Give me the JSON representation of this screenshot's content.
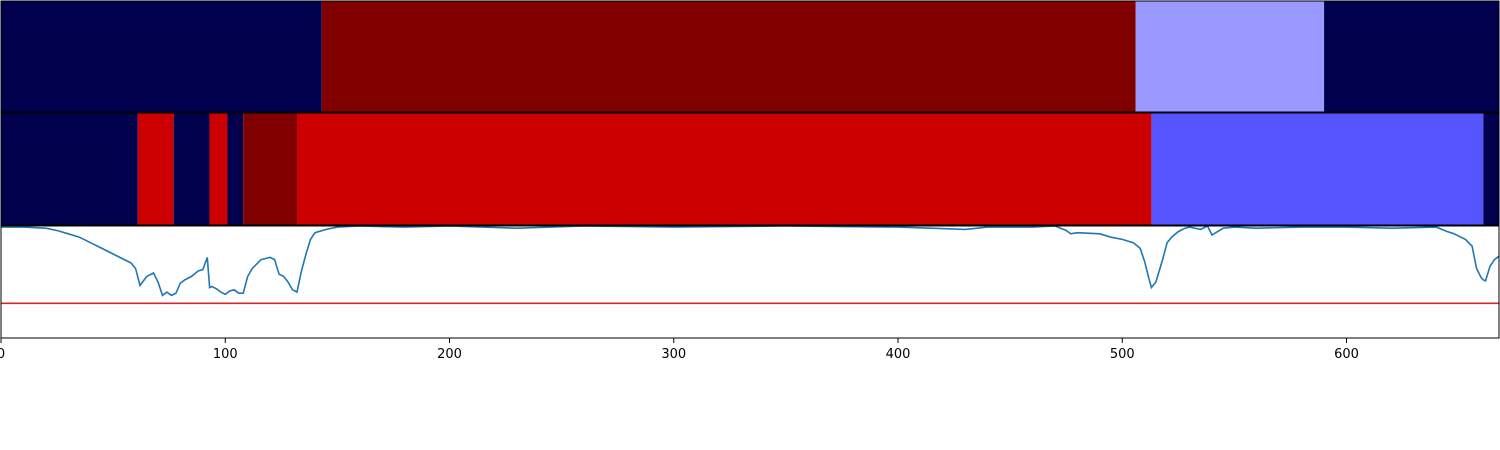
{
  "chart_data": {
    "type": "segmentation-timeline",
    "title": "",
    "xlabel": "",
    "ylabel": "",
    "xlim": [
      0,
      668
    ],
    "x_ticks": [
      0,
      100,
      200,
      300,
      400,
      500,
      600
    ],
    "tracks": [
      {
        "segments": [
          {
            "start": 0,
            "end": 143,
            "color": "#00004d"
          },
          {
            "start": 143,
            "end": 506,
            "color": "#800000"
          },
          {
            "start": 506,
            "end": 590,
            "color": "#9999ff"
          },
          {
            "start": 590,
            "end": 668,
            "color": "#00004d"
          }
        ]
      },
      {
        "segments": [
          {
            "start": 0,
            "end": 61,
            "color": "#00004d"
          },
          {
            "start": 61,
            "end": 77,
            "color": "#cc0000"
          },
          {
            "start": 77,
            "end": 93,
            "color": "#00004d"
          },
          {
            "start": 93,
            "end": 101,
            "color": "#cc0000"
          },
          {
            "start": 101,
            "end": 108,
            "color": "#00004d"
          },
          {
            "start": 108,
            "end": 132,
            "color": "#800000"
          },
          {
            "start": 132,
            "end": 513,
            "color": "#cc0000"
          },
          {
            "start": 513,
            "end": 661,
            "color": "#5555ff"
          },
          {
            "start": 661,
            "end": 668,
            "color": "#00004d"
          }
        ]
      }
    ],
    "line_panel": {
      "ylim": [
        0,
        1
      ],
      "threshold": 0.31,
      "threshold_color": "#d62728",
      "line_color": "#1f77b4",
      "series": {
        "x": [
          0,
          10,
          20,
          25,
          30,
          35,
          40,
          45,
          50,
          55,
          58,
          60,
          62,
          65,
          68,
          70,
          72,
          74,
          76,
          78,
          80,
          82,
          85,
          88,
          90,
          92,
          93,
          94,
          96,
          98,
          100,
          102,
          104,
          106,
          108,
          110,
          112,
          114,
          116,
          118,
          120,
          122,
          124,
          126,
          128,
          130,
          132,
          134,
          136,
          138,
          140,
          145,
          150,
          160,
          180,
          200,
          230,
          260,
          300,
          350,
          400,
          415,
          430,
          440,
          460,
          470,
          475,
          477,
          480,
          490,
          495,
          500,
          505,
          508,
          510,
          512,
          513,
          515,
          518,
          520,
          522,
          525,
          528,
          530,
          535,
          538,
          540,
          545,
          550,
          560,
          580,
          600,
          620,
          640,
          645,
          648,
          650,
          653,
          656,
          658,
          660,
          661,
          662,
          664,
          666,
          668
        ],
        "y": [
          0.99,
          0.99,
          0.98,
          0.96,
          0.93,
          0.9,
          0.85,
          0.8,
          0.75,
          0.7,
          0.67,
          0.62,
          0.47,
          0.55,
          0.58,
          0.5,
          0.38,
          0.41,
          0.38,
          0.4,
          0.49,
          0.52,
          0.55,
          0.6,
          0.61,
          0.72,
          0.45,
          0.46,
          0.44,
          0.41,
          0.39,
          0.42,
          0.43,
          0.4,
          0.4,
          0.55,
          0.62,
          0.66,
          0.7,
          0.71,
          0.72,
          0.7,
          0.57,
          0.55,
          0.5,
          0.43,
          0.41,
          0.6,
          0.75,
          0.88,
          0.94,
          0.97,
          0.99,
          1.0,
          0.99,
          1.0,
          0.98,
          1.0,
          0.99,
          1.0,
          0.99,
          0.98,
          0.97,
          0.99,
          0.99,
          1.0,
          0.96,
          0.93,
          0.94,
          0.93,
          0.9,
          0.88,
          0.85,
          0.8,
          0.68,
          0.52,
          0.45,
          0.5,
          0.7,
          0.85,
          0.9,
          0.95,
          0.98,
          0.99,
          0.97,
          1.0,
          0.92,
          0.98,
          0.99,
          0.98,
          0.99,
          0.99,
          0.98,
          0.99,
          0.95,
          0.93,
          0.91,
          0.88,
          0.82,
          0.62,
          0.54,
          0.52,
          0.51,
          0.64,
          0.7,
          0.73
        ]
      }
    }
  }
}
